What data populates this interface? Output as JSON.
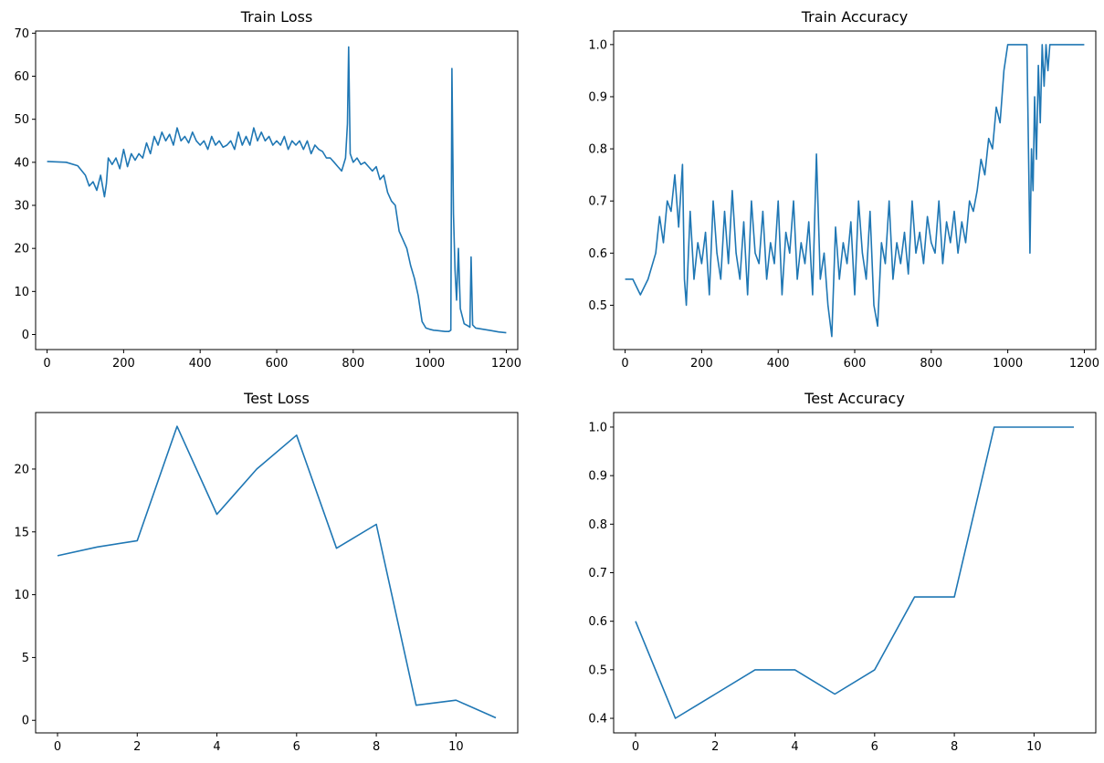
{
  "figure": {
    "background": "#ffffff",
    "line_color": "#1f77b4"
  },
  "chart_data": [
    {
      "type": "line",
      "title": "Train Loss",
      "xlim": [
        -30,
        1230
      ],
      "ylim": [
        -3.5,
        70.5
      ],
      "xticks": [
        0,
        200,
        400,
        600,
        800,
        1000,
        1200
      ],
      "yticks": [
        0,
        10,
        20,
        30,
        40,
        50,
        60,
        70
      ],
      "x": [
        0,
        50,
        80,
        100,
        110,
        120,
        130,
        140,
        150,
        155,
        160,
        170,
        180,
        190,
        200,
        210,
        220,
        230,
        240,
        250,
        260,
        270,
        280,
        290,
        300,
        310,
        320,
        330,
        340,
        350,
        360,
        370,
        380,
        390,
        400,
        410,
        420,
        430,
        440,
        450,
        460,
        470,
        480,
        490,
        500,
        510,
        520,
        530,
        540,
        550,
        560,
        570,
        580,
        590,
        600,
        610,
        620,
        630,
        640,
        650,
        660,
        670,
        680,
        690,
        700,
        710,
        720,
        730,
        740,
        750,
        760,
        770,
        780,
        785,
        788,
        792,
        800,
        810,
        820,
        830,
        840,
        850,
        860,
        870,
        880,
        890,
        900,
        910,
        920,
        930,
        940,
        950,
        960,
        970,
        975,
        980,
        990,
        1000,
        1010,
        1020,
        1030,
        1040,
        1050,
        1055,
        1058,
        1062,
        1066,
        1070,
        1075,
        1080,
        1090,
        1100,
        1105,
        1108,
        1112,
        1120,
        1140,
        1160,
        1180,
        1200
      ],
      "y": [
        40.2,
        40,
        39.2,
        37,
        34.5,
        35.5,
        33.5,
        37,
        32,
        35,
        41,
        39.5,
        41,
        38.5,
        43,
        39,
        42,
        40.5,
        42,
        41,
        44.5,
        42,
        46,
        44,
        47,
        45,
        46.5,
        44,
        48,
        45,
        46,
        44.5,
        47,
        45,
        44,
        45,
        43,
        46,
        44,
        45,
        43.5,
        44,
        45,
        43,
        47,
        44,
        46,
        44,
        48,
        45,
        47,
        45,
        46,
        44,
        45,
        44,
        46,
        43,
        45,
        44,
        45,
        43,
        45,
        42,
        44,
        43,
        42.5,
        41,
        41,
        40,
        39,
        38,
        41,
        49,
        66.8,
        42,
        40,
        41,
        39.5,
        40,
        39,
        38,
        39,
        36,
        37,
        33,
        31,
        30,
        24,
        22,
        20,
        16,
        13,
        9,
        6,
        3,
        1.5,
        1.2,
        1.0,
        0.9,
        0.8,
        0.7,
        0.7,
        1.0,
        61.8,
        28,
        15,
        8,
        20,
        6,
        2.5,
        2.0,
        1.7,
        18,
        2.2,
        1.5,
        1.2,
        0.9,
        0.6,
        0.4
      ]
    },
    {
      "type": "line",
      "title": "Train Accuracy",
      "xlim": [
        -30,
        1230
      ],
      "ylim": [
        0.415,
        1.026
      ],
      "xticks": [
        0,
        200,
        400,
        600,
        800,
        1000,
        1200
      ],
      "yticks": [
        0.5,
        0.6,
        0.7,
        0.8,
        0.9,
        1.0
      ],
      "x": [
        0,
        10,
        20,
        40,
        60,
        80,
        90,
        100,
        110,
        120,
        130,
        140,
        150,
        155,
        160,
        170,
        180,
        190,
        200,
        210,
        220,
        230,
        240,
        250,
        260,
        270,
        280,
        290,
        300,
        310,
        320,
        330,
        340,
        350,
        360,
        370,
        380,
        390,
        400,
        410,
        420,
        430,
        440,
        450,
        460,
        470,
        480,
        490,
        500,
        510,
        520,
        530,
        540,
        550,
        560,
        570,
        580,
        590,
        600,
        610,
        620,
        630,
        640,
        650,
        660,
        670,
        680,
        690,
        700,
        710,
        720,
        730,
        740,
        750,
        760,
        770,
        780,
        790,
        800,
        810,
        820,
        830,
        840,
        850,
        860,
        870,
        880,
        890,
        900,
        910,
        920,
        930,
        940,
        950,
        960,
        970,
        980,
        990,
        1000,
        1050,
        1055,
        1058,
        1062,
        1066,
        1070,
        1075,
        1080,
        1085,
        1090,
        1095,
        1100,
        1105,
        1110,
        1115,
        1120,
        1200
      ],
      "y": [
        0.55,
        0.55,
        0.55,
        0.52,
        0.55,
        0.6,
        0.67,
        0.62,
        0.7,
        0.68,
        0.75,
        0.65,
        0.77,
        0.55,
        0.5,
        0.68,
        0.55,
        0.62,
        0.58,
        0.64,
        0.52,
        0.7,
        0.6,
        0.55,
        0.68,
        0.58,
        0.72,
        0.6,
        0.55,
        0.66,
        0.52,
        0.7,
        0.6,
        0.58,
        0.68,
        0.55,
        0.62,
        0.58,
        0.7,
        0.52,
        0.64,
        0.6,
        0.7,
        0.55,
        0.62,
        0.58,
        0.66,
        0.52,
        0.79,
        0.55,
        0.6,
        0.5,
        0.44,
        0.65,
        0.55,
        0.62,
        0.58,
        0.66,
        0.52,
        0.7,
        0.6,
        0.55,
        0.68,
        0.5,
        0.46,
        0.62,
        0.58,
        0.7,
        0.55,
        0.62,
        0.58,
        0.64,
        0.56,
        0.7,
        0.6,
        0.64,
        0.58,
        0.67,
        0.62,
        0.6,
        0.7,
        0.58,
        0.66,
        0.62,
        0.68,
        0.6,
        0.66,
        0.62,
        0.7,
        0.68,
        0.72,
        0.78,
        0.75,
        0.82,
        0.8,
        0.88,
        0.85,
        0.95,
        1.0,
        1.0,
        0.75,
        0.6,
        0.8,
        0.72,
        0.9,
        0.78,
        0.96,
        0.85,
        1.0,
        0.92,
        1.0,
        0.95,
        1.0,
        1.0,
        1.0,
        1.0
      ]
    },
    {
      "type": "line",
      "title": "Test Loss",
      "xlim": [
        -0.55,
        11.55
      ],
      "ylim": [
        -1.0,
        24.5
      ],
      "xticks": [
        0,
        2,
        4,
        6,
        8,
        10
      ],
      "yticks": [
        0,
        5,
        10,
        15,
        20
      ],
      "x": [
        0,
        1,
        2,
        3,
        4,
        5,
        6,
        7,
        8,
        9,
        10,
        11
      ],
      "y": [
        13.1,
        13.8,
        14.3,
        23.4,
        16.4,
        20.0,
        22.7,
        13.7,
        15.6,
        1.2,
        1.6,
        0.2
      ]
    },
    {
      "type": "line",
      "title": "Test Accuracy",
      "xlim": [
        -0.55,
        11.55
      ],
      "ylim": [
        0.37,
        1.03
      ],
      "xticks": [
        0,
        2,
        4,
        6,
        8,
        10
      ],
      "yticks": [
        0.4,
        0.5,
        0.6,
        0.7,
        0.8,
        0.9,
        1.0
      ],
      "x": [
        0,
        1,
        2,
        3,
        4,
        5,
        6,
        7,
        8,
        9,
        10,
        11
      ],
      "y": [
        0.6,
        0.4,
        0.45,
        0.5,
        0.5,
        0.45,
        0.5,
        0.65,
        0.65,
        1.0,
        1.0,
        1.0
      ]
    }
  ]
}
